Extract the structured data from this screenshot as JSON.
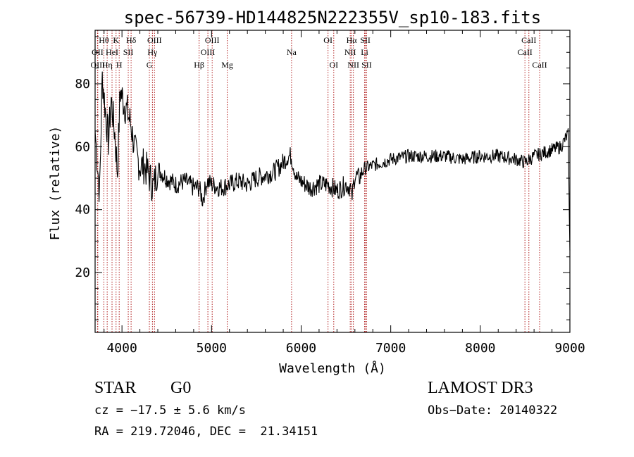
{
  "chart_data": {
    "type": "line",
    "title": "spec-56739-HD144825N222355V_sp10-183.fits",
    "xlabel": "Wavelength (Å)",
    "ylabel": "Flux (relative)",
    "xlim": [
      3700,
      9000
    ],
    "ylim": [
      1,
      97
    ],
    "x_ticks": [
      4000,
      5000,
      6000,
      7000,
      8000,
      9000
    ],
    "x_tick_labels": [
      "4000",
      "5000",
      "6000",
      "7000",
      "8000",
      "9000"
    ],
    "y_ticks": [
      20,
      40,
      60,
      80
    ],
    "y_tick_labels": [
      "20",
      "40",
      "60",
      "80"
    ],
    "grid": false,
    "line_color": "#000000",
    "marker_color": "#b22222",
    "series": [
      {
        "x": [
          3700,
          3750,
          3780,
          3820,
          3850,
          3880,
          3920,
          3950,
          3980,
          4020,
          4060,
          4100,
          4150,
          4200,
          4250,
          4300,
          4350,
          4400,
          4500,
          4600,
          4700,
          4800,
          4860,
          4900,
          4950,
          5000,
          5100,
          5200,
          5300,
          5400,
          5500,
          5600,
          5700,
          5800,
          5850,
          5890,
          5950,
          6000,
          6100,
          6200,
          6300,
          6400,
          6500,
          6550,
          6563,
          6600,
          6650,
          6700,
          6800,
          6900,
          7000,
          7200,
          7400,
          7600,
          7800,
          8000,
          8200,
          8400,
          8500,
          8600,
          8700,
          8800,
          8900,
          8980,
          9000
        ],
        "y": [
          65,
          45,
          82,
          70,
          62,
          75,
          64,
          52,
          78,
          74,
          71,
          67,
          58,
          54,
          54,
          51,
          47,
          53,
          50,
          48,
          49,
          47,
          47,
          43,
          49,
          48,
          47,
          48,
          49,
          48,
          50,
          51,
          52,
          55,
          57,
          57,
          50,
          49,
          47,
          48,
          48,
          46,
          48,
          47,
          43,
          51,
          50,
          53,
          54,
          55,
          56,
          57,
          57,
          57,
          56,
          57,
          57,
          56,
          55,
          57,
          58,
          59,
          60,
          64,
          27
        ]
      }
    ],
    "lines": [
      {
        "label": "Hθ",
        "x": 3798,
        "row": 1
      },
      {
        "label": "OII",
        "x": 3727,
        "row": 2
      },
      {
        "label": "OIII",
        "x": 3730,
        "row": 3
      },
      {
        "label": "Hη",
        "x": 3835,
        "row": 3
      },
      {
        "label": "HeI",
        "x": 3889,
        "row": 2
      },
      {
        "label": "K",
        "x": 3934,
        "row": 1
      },
      {
        "label": "H",
        "x": 3969,
        "row": 3
      },
      {
        "label": "SII",
        "x": 4070,
        "row": 2
      },
      {
        "label": "Hδ",
        "x": 4102,
        "row": 1
      },
      {
        "label": "OIII",
        "x": 4363,
        "row": 1
      },
      {
        "label": "Hγ",
        "x": 4340,
        "row": 2
      },
      {
        "label": "G",
        "x": 4306,
        "row": 3
      },
      {
        "label": "Hβ",
        "x": 4861,
        "row": 3
      },
      {
        "label": "OIII",
        "x": 5007,
        "row": 1
      },
      {
        "label": "OIII",
        "x": 4959,
        "row": 2
      },
      {
        "label": "Mg",
        "x": 5175,
        "row": 3
      },
      {
        "label": "Na",
        "x": 5893,
        "row": 2
      },
      {
        "label": "OI",
        "x": 6300,
        "row": 1
      },
      {
        "label": "OI",
        "x": 6364,
        "row": 3
      },
      {
        "label": "Hα",
        "x": 6563,
        "row": 1
      },
      {
        "label": "SII",
        "x": 6716,
        "row": 1
      },
      {
        "label": "NII",
        "x": 6548,
        "row": 2
      },
      {
        "label": "Li",
        "x": 6708,
        "row": 2
      },
      {
        "label": "NII",
        "x": 6583,
        "row": 3
      },
      {
        "label": "SII",
        "x": 6731,
        "row": 3
      },
      {
        "label": "CaII",
        "x": 8542,
        "row": 1
      },
      {
        "label": "CaII",
        "x": 8498,
        "row": 2
      },
      {
        "label": "CaII",
        "x": 8662,
        "row": 3
      }
    ]
  },
  "info": {
    "class": "STAR",
    "subclass": "G0",
    "survey": "LAMOST DR3",
    "cz": "cz = −17.5 ± 5.6 km/s",
    "obs_date": "Obs−Date: 20140322",
    "radec": "RA = 219.72046, DEC =  21.34151"
  }
}
